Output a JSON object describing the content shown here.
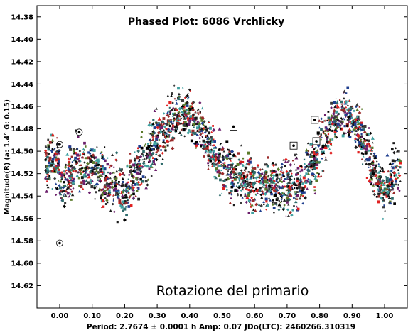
{
  "chart_data": {
    "type": "scatter",
    "title": "Phased Plot: 6086 Vrchlicky",
    "ylabel": "Magnitude(R)  (a: 1.4°  G: 0.15)",
    "xlabel": "Period: 2.7674 ± 0.0001 h   Amp: 0.07     JDo(LTC): 2460266.310319",
    "annotation": "Rotazione del primario",
    "xlim": [
      -0.07,
      1.07
    ],
    "ylim": [
      14.37,
      14.64
    ],
    "y_inverted": true,
    "grid": false,
    "x_ticks": [
      "0.00",
      "0.10",
      "0.20",
      "0.30",
      "0.40",
      "0.50",
      "0.60",
      "0.70",
      "0.80",
      "0.90",
      "1.00"
    ],
    "y_ticks": [
      "14.38",
      "14.40",
      "14.42",
      "14.44",
      "14.46",
      "14.48",
      "14.50",
      "14.52",
      "14.54",
      "14.56",
      "14.58",
      "14.60",
      "14.62"
    ],
    "lightcurve_fit": {
      "x": [
        0.0,
        0.05,
        0.1,
        0.15,
        0.2,
        0.25,
        0.3,
        0.35,
        0.38,
        0.42,
        0.45,
        0.5,
        0.55,
        0.6,
        0.65,
        0.7,
        0.75,
        0.8,
        0.85,
        0.88,
        0.92,
        0.95,
        1.0,
        1.05
      ],
      "y": [
        14.535,
        14.51,
        14.515,
        14.53,
        14.535,
        14.515,
        14.49,
        14.47,
        14.465,
        14.475,
        14.49,
        14.515,
        14.525,
        14.53,
        14.53,
        14.535,
        14.525,
        14.5,
        14.47,
        14.465,
        14.48,
        14.505,
        14.535,
        14.51
      ]
    },
    "series_colors": [
      "#000000",
      "#1a1a1a",
      "#3a3a3a",
      "#2e6b6b",
      "#3fa0a0",
      "#1f3f8f",
      "#6b1f6b",
      "#9a2a2a",
      "#e02020",
      "#5a7a2a"
    ],
    "outliers": [
      {
        "x": 0.0,
        "y": 14.582,
        "marker": "circle"
      },
      {
        "x": 0.0,
        "y": 14.494,
        "marker": "circle"
      },
      {
        "x": 0.06,
        "y": 14.483,
        "marker": "circle"
      },
      {
        "x": 0.535,
        "y": 14.478,
        "marker": "square"
      },
      {
        "x": 0.72,
        "y": 14.495,
        "marker": "square"
      },
      {
        "x": 0.785,
        "y": 14.472,
        "marker": "square"
      },
      {
        "x": 0.79,
        "y": 14.491,
        "marker": "square"
      }
    ]
  }
}
